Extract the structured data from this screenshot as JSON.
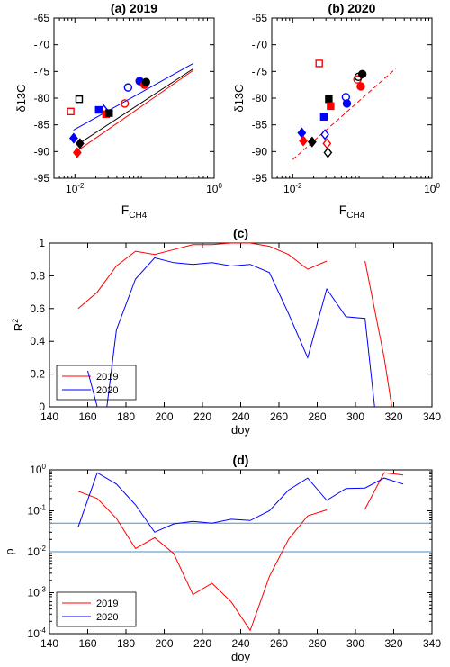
{
  "chart_data": [
    {
      "id": "a",
      "type": "scatter",
      "title_prefix": "(a)",
      "title": "2019",
      "xlabel": "F",
      "xlabel_sub": "CH4",
      "ylabel": "δ13C",
      "xscale": "log",
      "xlim": [
        0.005,
        1
      ],
      "ylim": [
        -95,
        -65
      ],
      "xticks": [
        {
          "v": 0.01,
          "base": "10",
          "exp": "-2"
        },
        {
          "v": 1,
          "base": "10",
          "exp": "0"
        }
      ],
      "yticks": [
        -95,
        -90,
        -85,
        -80,
        -75,
        -70,
        -65
      ],
      "points": [
        {
          "x": 0.0087,
          "y": -82.5,
          "marker": "square",
          "filled": false,
          "color": "#ff0000"
        },
        {
          "x": 0.0115,
          "y": -80.2,
          "marker": "square",
          "filled": false,
          "color": "#000000"
        },
        {
          "x": 0.0096,
          "y": -87.5,
          "marker": "diamond",
          "filled": true,
          "color": "#0000ff"
        },
        {
          "x": 0.0108,
          "y": -90.2,
          "marker": "diamond",
          "filled": true,
          "color": "#ff0000"
        },
        {
          "x": 0.0118,
          "y": -88.5,
          "marker": "diamond",
          "filled": true,
          "color": "#000000"
        },
        {
          "x": 0.022,
          "y": -82.2,
          "marker": "square",
          "filled": true,
          "color": "#0000ff"
        },
        {
          "x": 0.026,
          "y": -82.2,
          "marker": "diamond",
          "filled": false,
          "color": "#0000ff"
        },
        {
          "x": 0.028,
          "y": -83.0,
          "marker": "square",
          "filled": true,
          "color": "#ff0000"
        },
        {
          "x": 0.031,
          "y": -82.8,
          "marker": "square",
          "filled": true,
          "color": "#000000"
        },
        {
          "x": 0.052,
          "y": -81.0,
          "marker": "circle",
          "filled": false,
          "color": "#ff0000"
        },
        {
          "x": 0.058,
          "y": -78.0,
          "marker": "circle",
          "filled": false,
          "color": "#0000ff"
        },
        {
          "x": 0.085,
          "y": -76.8,
          "marker": "circle",
          "filled": true,
          "color": "#0000ff"
        },
        {
          "x": 0.1,
          "y": -77.5,
          "marker": "circle",
          "filled": true,
          "color": "#ff0000"
        },
        {
          "x": 0.105,
          "y": -77.0,
          "marker": "circle",
          "filled": true,
          "color": "#000000"
        }
      ],
      "fit_lines": [
        {
          "color": "#0000ff",
          "dashed": false,
          "x": [
            0.0095,
            0.5
          ],
          "y": [
            -86.0,
            -73.5
          ]
        },
        {
          "color": "#ff0000",
          "dashed": false,
          "x": [
            0.0105,
            0.5
          ],
          "y": [
            -90.0,
            -74.8
          ]
        },
        {
          "color": "#000000",
          "dashed": false,
          "x": [
            0.0115,
            0.5
          ],
          "y": [
            -88.5,
            -74.5
          ]
        }
      ]
    },
    {
      "id": "b",
      "type": "scatter",
      "title_prefix": "(b)",
      "title": "2020",
      "xlabel": "F",
      "xlabel_sub": "CH4",
      "ylabel": "δ13C",
      "xscale": "log",
      "xlim": [
        0.005,
        1
      ],
      "ylim": [
        -95,
        -65
      ],
      "xticks": [
        {
          "v": 0.01,
          "base": "10",
          "exp": "-2"
        },
        {
          "v": 1,
          "base": "10",
          "exp": "0"
        }
      ],
      "yticks": [
        -95,
        -90,
        -85,
        -80,
        -75,
        -70,
        -65
      ],
      "points": [
        {
          "x": 0.024,
          "y": -73.5,
          "marker": "square",
          "filled": false,
          "color": "#ff0000"
        },
        {
          "x": 0.0135,
          "y": -86.5,
          "marker": "diamond",
          "filled": true,
          "color": "#0000ff"
        },
        {
          "x": 0.0142,
          "y": -88.0,
          "marker": "diamond",
          "filled": true,
          "color": "#ff0000"
        },
        {
          "x": 0.019,
          "y": -88.2,
          "marker": "diamond",
          "filled": true,
          "color": "#000000"
        },
        {
          "x": 0.028,
          "y": -83.5,
          "marker": "square",
          "filled": true,
          "color": "#0000ff"
        },
        {
          "x": 0.029,
          "y": -86.8,
          "marker": "diamond",
          "filled": false,
          "color": "#0000ff"
        },
        {
          "x": 0.031,
          "y": -88.5,
          "marker": "diamond",
          "filled": false,
          "color": "#ff0000"
        },
        {
          "x": 0.032,
          "y": -90.2,
          "marker": "diamond",
          "filled": false,
          "color": "#000000"
        },
        {
          "x": 0.033,
          "y": -80.2,
          "marker": "square",
          "filled": true,
          "color": "#000000"
        },
        {
          "x": 0.035,
          "y": -81.5,
          "marker": "square",
          "filled": true,
          "color": "#ff0000"
        },
        {
          "x": 0.058,
          "y": -79.8,
          "marker": "circle",
          "filled": false,
          "color": "#0000ff"
        },
        {
          "x": 0.06,
          "y": -81.0,
          "marker": "circle",
          "filled": true,
          "color": "#0000ff"
        },
        {
          "x": 0.085,
          "y": -76.5,
          "marker": "circle",
          "filled": false,
          "color": "#ff0000"
        },
        {
          "x": 0.088,
          "y": -76.0,
          "marker": "circle",
          "filled": false,
          "color": "#000000"
        },
        {
          "x": 0.095,
          "y": -77.8,
          "marker": "circle",
          "filled": true,
          "color": "#ff0000"
        },
        {
          "x": 0.1,
          "y": -75.5,
          "marker": "circle",
          "filled": true,
          "color": "#000000"
        }
      ],
      "fit_lines": [
        {
          "color": "#ff0000",
          "dashed": true,
          "x": [
            0.01,
            0.3
          ],
          "y": [
            -91.5,
            -74.5
          ]
        }
      ]
    },
    {
      "id": "c",
      "type": "line",
      "title": "(c)",
      "xlabel": "doy",
      "ylabel": "R",
      "ylabel_sup": "2",
      "xscale": "linear",
      "xlim": [
        140,
        340
      ],
      "ylim": [
        0,
        1
      ],
      "xticks": [
        140,
        160,
        180,
        200,
        220,
        240,
        260,
        280,
        300,
        320,
        340
      ],
      "yticks": [
        0,
        0.2,
        0.4,
        0.6,
        0.8,
        1
      ],
      "legend_position": "bottom-left",
      "series": [
        {
          "name": "2019",
          "color": "#ff0000",
          "segments": [
            [
              [
                155,
                0.6
              ],
              [
                165,
                0.7
              ],
              [
                175,
                0.86
              ],
              [
                185,
                0.95
              ],
              [
                195,
                0.93
              ],
              [
                205,
                0.96
              ],
              [
                215,
                0.99
              ],
              [
                225,
                0.99
              ],
              [
                235,
                1.0
              ],
              [
                245,
                1.0
              ],
              [
                255,
                0.98
              ],
              [
                265,
                0.93
              ],
              [
                275,
                0.84
              ],
              [
                285,
                0.89
              ]
            ],
            [
              [
                305,
                0.89
              ],
              [
                315,
                0.3
              ],
              [
                319,
                0.0
              ]
            ]
          ]
        },
        {
          "name": "2020",
          "color": "#0000ff",
          "segments": [
            [
              [
                160,
                0.22
              ],
              [
                165,
                0.0
              ]
            ],
            [
              [
                170,
                0.0
              ],
              [
                175,
                0.47
              ],
              [
                185,
                0.78
              ],
              [
                195,
                0.91
              ],
              [
                205,
                0.88
              ],
              [
                215,
                0.87
              ],
              [
                225,
                0.88
              ],
              [
                235,
                0.86
              ],
              [
                245,
                0.87
              ],
              [
                255,
                0.82
              ],
              [
                265,
                0.57
              ],
              [
                275,
                0.3
              ],
              [
                285,
                0.72
              ],
              [
                295,
                0.55
              ],
              [
                305,
                0.54
              ],
              [
                310,
                0.0
              ]
            ]
          ]
        }
      ]
    },
    {
      "id": "d",
      "type": "line",
      "title": "(d)",
      "xlabel": "doy",
      "ylabel": "p",
      "xscale": "linear",
      "yscale": "log",
      "xlim": [
        140,
        340
      ],
      "ylim": [
        0.0001,
        1
      ],
      "xticks": [
        140,
        160,
        180,
        200,
        220,
        240,
        260,
        280,
        300,
        320,
        340
      ],
      "yticks": [
        {
          "v": 0.0001,
          "base": "10",
          "exp": "-4"
        },
        {
          "v": 0.001,
          "base": "10",
          "exp": "-3"
        },
        {
          "v": 0.01,
          "base": "10",
          "exp": "-2"
        },
        {
          "v": 0.1,
          "base": "10",
          "exp": "-1"
        },
        {
          "v": 1,
          "base": "10",
          "exp": "0"
        }
      ],
      "hlines": [
        {
          "y": 0.05,
          "color": "#4a90c8"
        },
        {
          "y": 0.01,
          "color": "#4a90c8"
        }
      ],
      "legend_position": "bottom-left",
      "series": [
        {
          "name": "2019",
          "color": "#ff0000",
          "segments": [
            [
              [
                155,
                0.3
              ],
              [
                165,
                0.2
              ],
              [
                175,
                0.065
              ],
              [
                185,
                0.012
              ],
              [
                195,
                0.022
              ],
              [
                205,
                0.009
              ],
              [
                215,
                0.0009
              ],
              [
                225,
                0.0017
              ],
              [
                235,
                0.0006
              ],
              [
                245,
                0.00012
              ],
              [
                255,
                0.0025
              ],
              [
                265,
                0.02
              ],
              [
                275,
                0.075
              ],
              [
                285,
                0.105
              ]
            ],
            [
              [
                305,
                0.11
              ],
              [
                315,
                0.85
              ],
              [
                325,
                0.75
              ]
            ]
          ]
        },
        {
          "name": "2020",
          "color": "#0000ff",
          "segments": [
            [
              [
                155,
                0.04
              ],
              [
                165,
                0.85
              ],
              [
                175,
                0.45
              ],
              [
                185,
                0.14
              ],
              [
                195,
                0.03
              ],
              [
                205,
                0.048
              ],
              [
                215,
                0.055
              ],
              [
                225,
                0.05
              ],
              [
                235,
                0.062
              ],
              [
                245,
                0.058
              ],
              [
                255,
                0.1
              ],
              [
                265,
                0.32
              ],
              [
                275,
                0.63
              ],
              [
                285,
                0.18
              ],
              [
                295,
                0.35
              ],
              [
                305,
                0.36
              ],
              [
                315,
                0.63
              ],
              [
                325,
                0.45
              ]
            ]
          ]
        }
      ]
    }
  ]
}
